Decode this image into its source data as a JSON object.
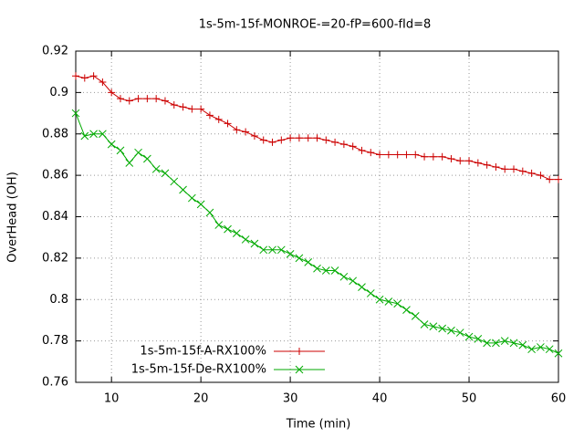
{
  "chart_data": {
    "type": "line",
    "title": "1s-5m-15f-MONROE-=20-fP=600-fId=8",
    "xlabel": "Time (min)",
    "ylabel": "OverHead (OH)",
    "x": [
      6,
      7,
      8,
      9,
      10,
      11,
      12,
      13,
      14,
      15,
      16,
      17,
      18,
      19,
      20,
      21,
      22,
      23,
      24,
      25,
      26,
      27,
      28,
      29,
      30,
      31,
      32,
      33,
      34,
      35,
      36,
      37,
      38,
      39,
      40,
      41,
      42,
      43,
      44,
      45,
      46,
      47,
      48,
      49,
      50,
      51,
      52,
      53,
      54,
      55,
      56,
      57,
      58,
      59,
      60
    ],
    "series": [
      {
        "name": "1s-5m-15f-A-RX100%",
        "color": "#cc0000",
        "marker": "plus",
        "values": [
          0.908,
          0.907,
          0.908,
          0.905,
          0.9,
          0.897,
          0.896,
          0.897,
          0.897,
          0.897,
          0.896,
          0.894,
          0.893,
          0.892,
          0.892,
          0.889,
          0.887,
          0.885,
          0.882,
          0.881,
          0.879,
          0.877,
          0.876,
          0.877,
          0.878,
          0.878,
          0.878,
          0.878,
          0.877,
          0.876,
          0.875,
          0.874,
          0.872,
          0.871,
          0.87,
          0.87,
          0.87,
          0.87,
          0.87,
          0.869,
          0.869,
          0.869,
          0.868,
          0.867,
          0.867,
          0.866,
          0.865,
          0.864,
          0.863,
          0.863,
          0.862,
          0.861,
          0.86,
          0.858,
          0.858
        ]
      },
      {
        "name": "1s-5m-15f-De-RX100%",
        "color": "#00aa00",
        "marker": "cross",
        "values": [
          0.89,
          0.879,
          0.88,
          0.88,
          0.875,
          0.872,
          0.866,
          0.871,
          0.868,
          0.863,
          0.861,
          0.857,
          0.853,
          0.849,
          0.846,
          0.842,
          0.836,
          0.834,
          0.832,
          0.829,
          0.827,
          0.824,
          0.824,
          0.824,
          0.822,
          0.82,
          0.818,
          0.815,
          0.814,
          0.814,
          0.811,
          0.809,
          0.806,
          0.803,
          0.8,
          0.799,
          0.798,
          0.795,
          0.792,
          0.788,
          0.787,
          0.786,
          0.785,
          0.784,
          0.782,
          0.781,
          0.779,
          0.779,
          0.78,
          0.779,
          0.778,
          0.776,
          0.777,
          0.776,
          0.774
        ]
      }
    ],
    "xlim": [
      6,
      60
    ],
    "xticks": [
      10,
      20,
      30,
      40,
      50,
      60
    ],
    "ylim": [
      0.76,
      0.92
    ],
    "yticks": [
      0.76,
      0.78,
      0.8,
      0.82,
      0.84,
      0.86,
      0.88,
      0.9,
      0.92
    ],
    "grid": true,
    "legend": "bottom-left"
  }
}
